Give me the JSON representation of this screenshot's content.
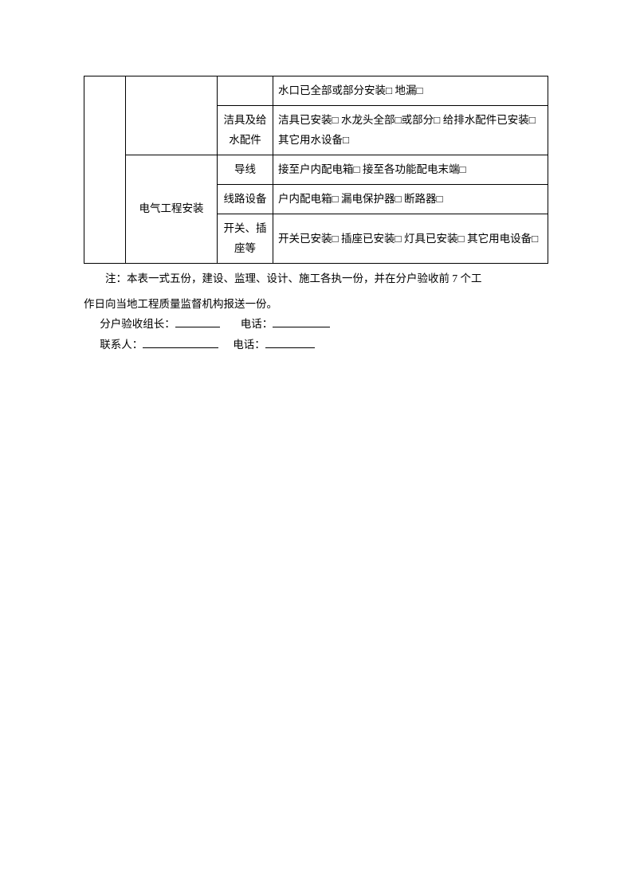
{
  "table": {
    "row1": {
      "col_d": "水口已全部或部分安装□  地漏□"
    },
    "row2": {
      "col_c": "洁具及给水配件",
      "col_d": "洁具已安装□  水龙头全部□或部分□  给排水配件已安装□  其它用水设备□"
    },
    "row3": {
      "col_b": "电气工程安装",
      "col_c": "导线",
      "col_d": "接至户内配电箱□  接至各功能配电末端□"
    },
    "row4": {
      "col_c": "线路设备",
      "col_d": "户内配电箱□  漏电保护器□  断路器□"
    },
    "row5": {
      "col_c": "开关、插座等",
      "col_d": "开关已安装□  插座已安装□  灯具已安装□  其它用电设备□"
    }
  },
  "notes": {
    "line1": "注：本表一式五份，建设、监理、设计、施工各执一份，并在分户验收前 7 个工",
    "line2": "作日向当地工程质量监督机构报送一份。"
  },
  "form": {
    "leader_label": "分户验收组长：",
    "phone_label": "电话：",
    "contact_label": "联系人："
  }
}
